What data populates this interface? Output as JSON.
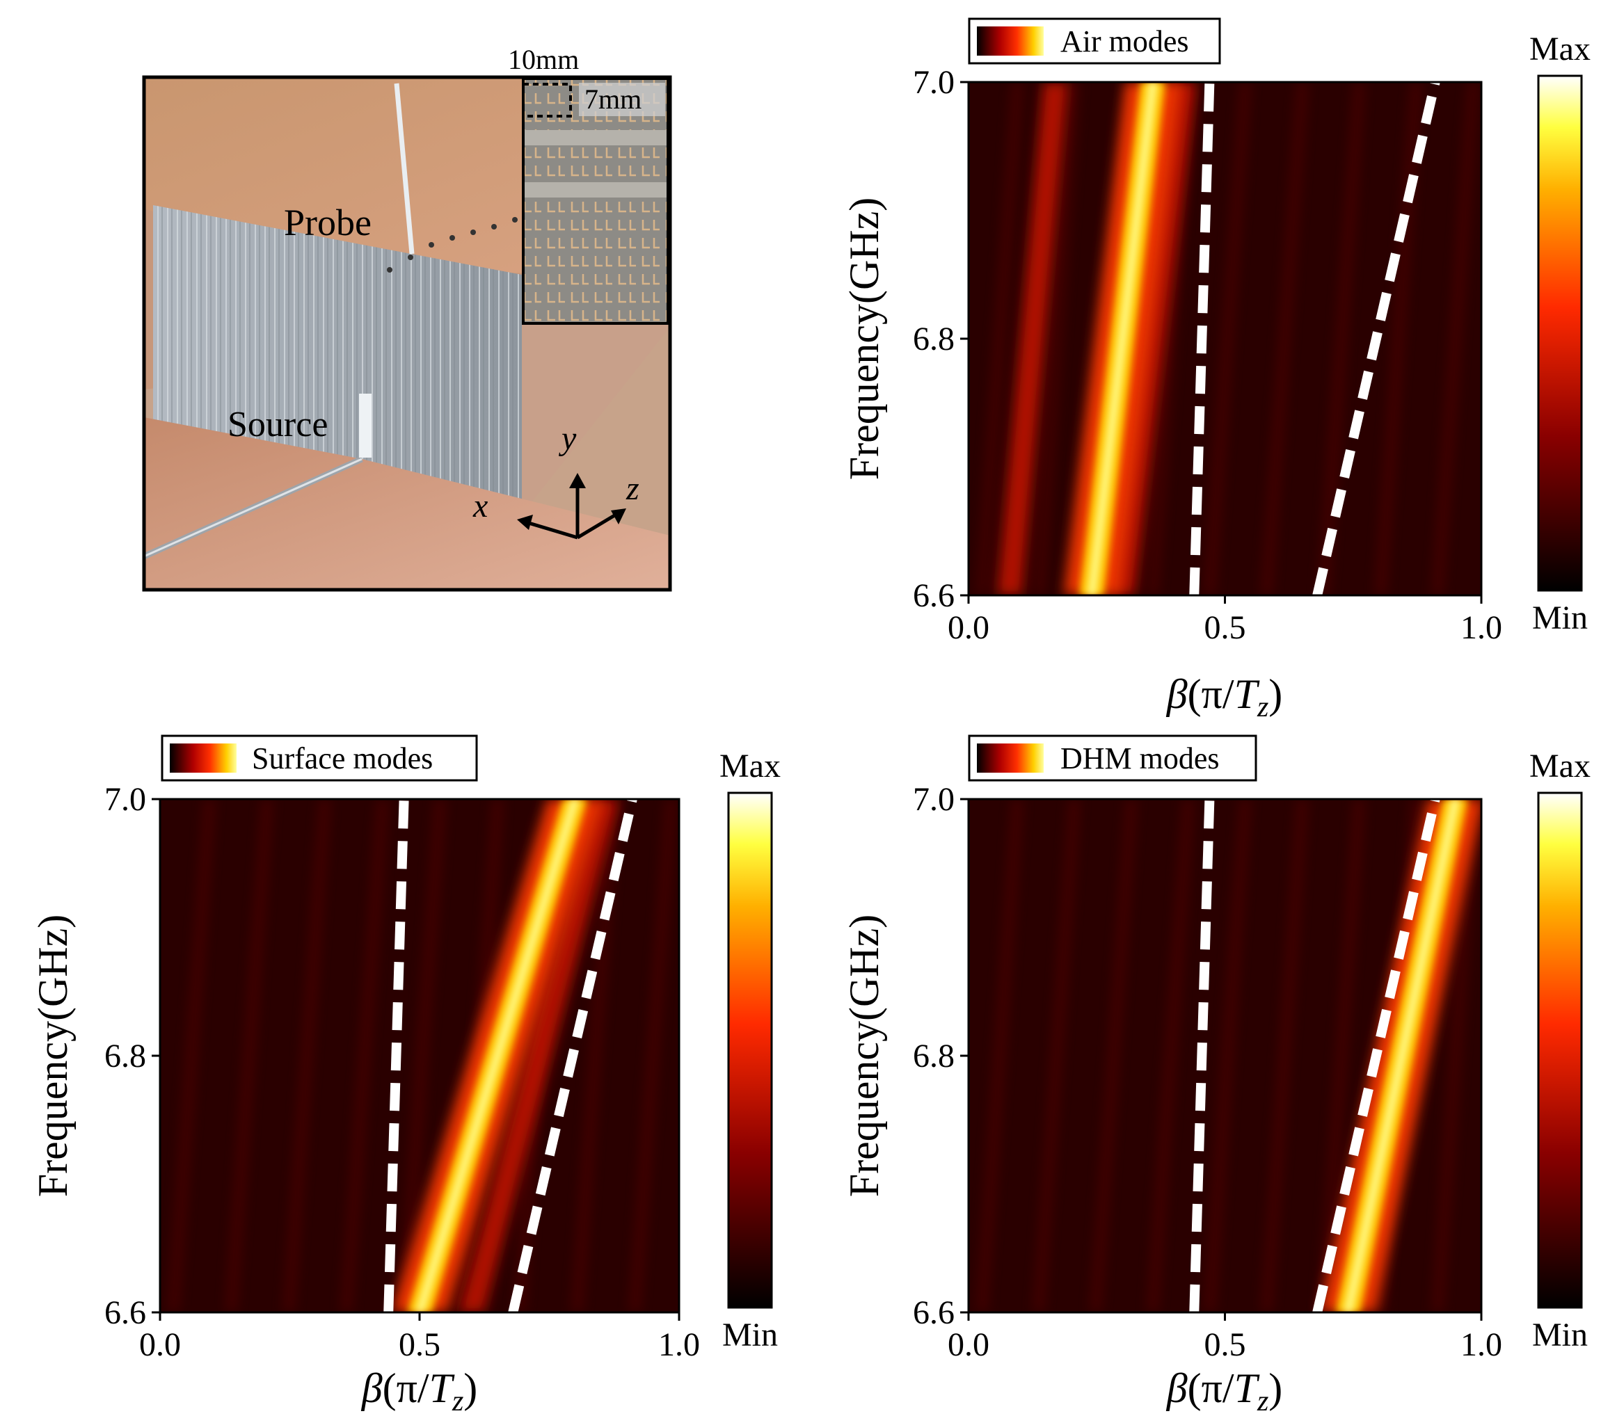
{
  "photo": {
    "labels": {
      "probe": "Probe",
      "source": "Source",
      "dim_width": "10mm",
      "dim_height": "7mm",
      "axis_x": "x",
      "axis_y": "y",
      "axis_z": "z"
    },
    "colors": {
      "copper": "#c8906a",
      "metal": "#a9b0b8"
    }
  },
  "colorbar": {
    "max_label": "Max",
    "min_label": "Min"
  },
  "chart_data": [
    {
      "type": "heatmap",
      "legend": "Air modes",
      "legend_position": "top-left",
      "xlabel_main": "β",
      "xlabel_paren_open": "(π/",
      "xlabel_T": "T",
      "xlabel_sub": "z",
      "xlabel_paren_close": ")",
      "ylabel": "Frequency(GHz)",
      "xlim": [
        0,
        1
      ],
      "ylim": [
        6.6,
        7.0
      ],
      "xticks": [
        "0.0",
        "0.5",
        "1.0"
      ],
      "yticks": [
        "6.6",
        "6.8",
        "7.0"
      ],
      "colormap": "hot",
      "bright_band": {
        "freq": [
          6.6,
          7.0
        ],
        "beta": [
          0.24,
          0.36
        ]
      },
      "secondary_bands": [
        {
          "freq": [
            6.6,
            7.0
          ],
          "beta": [
            0.08,
            0.17
          ]
        },
        {
          "freq": [
            6.6,
            7.0
          ],
          "beta": [
            0.3,
            0.42
          ]
        }
      ],
      "dashed_lines": [
        {
          "freq": [
            6.6,
            7.0
          ],
          "beta": [
            0.44,
            0.47
          ]
        },
        {
          "freq": [
            6.6,
            7.0
          ],
          "beta": [
            0.68,
            0.91
          ]
        }
      ]
    },
    {
      "type": "heatmap",
      "legend": "Surface modes",
      "legend_position": "top-left",
      "xlabel_main": "β",
      "xlabel_paren_open": "(π/",
      "xlabel_T": "T",
      "xlabel_sub": "z",
      "xlabel_paren_close": ")",
      "ylabel": "Frequency(GHz)",
      "xlim": [
        0,
        1
      ],
      "ylim": [
        6.6,
        7.0
      ],
      "xticks": [
        "0.0",
        "0.5",
        "1.0"
      ],
      "yticks": [
        "6.6",
        "6.8",
        "7.0"
      ],
      "colormap": "hot",
      "bright_band": {
        "freq": [
          6.6,
          7.0
        ],
        "beta": [
          0.5,
          0.8
        ]
      },
      "secondary_bands": [
        {
          "freq": [
            6.6,
            7.0
          ],
          "beta": [
            0.6,
            0.86
          ]
        }
      ],
      "dashed_lines": [
        {
          "freq": [
            6.6,
            7.0
          ],
          "beta": [
            0.44,
            0.47
          ]
        },
        {
          "freq": [
            6.6,
            7.0
          ],
          "beta": [
            0.68,
            0.91
          ]
        }
      ]
    },
    {
      "type": "heatmap",
      "legend": "DHM modes",
      "legend_position": "top-left",
      "xlabel_main": "β",
      "xlabel_paren_open": "(π/",
      "xlabel_T": "T",
      "xlabel_sub": "z",
      "xlabel_paren_close": ")",
      "ylabel": "Frequency(GHz)",
      "xlim": [
        0,
        1
      ],
      "ylim": [
        6.6,
        7.0
      ],
      "xticks": [
        "0.0",
        "0.5",
        "1.0"
      ],
      "yticks": [
        "6.6",
        "6.8",
        "7.0"
      ],
      "colormap": "hot",
      "bright_band": {
        "freq": [
          6.6,
          7.0
        ],
        "beta": [
          0.74,
          0.95
        ]
      },
      "secondary_bands": [],
      "dashed_lines": [
        {
          "freq": [
            6.6,
            7.0
          ],
          "beta": [
            0.44,
            0.47
          ]
        },
        {
          "freq": [
            6.6,
            7.0
          ],
          "beta": [
            0.68,
            0.91
          ]
        }
      ]
    }
  ]
}
